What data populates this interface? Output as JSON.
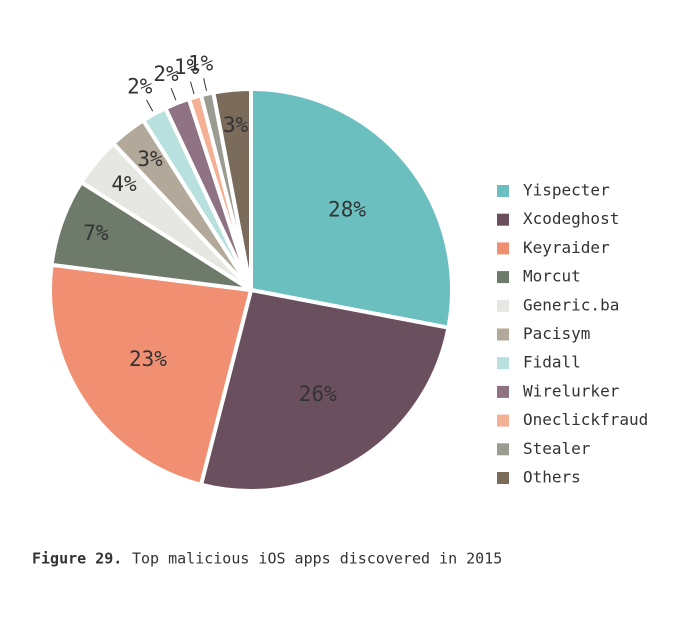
{
  "chart_data": {
    "type": "pie",
    "categories": [
      "Yispecter",
      "Xcodeghost",
      "Keyraider",
      "Morcut",
      "Generic.ba",
      "Pacisym",
      "Fidall",
      "Wirelurker",
      "Oneclickfraud",
      "Stealer",
      "Others"
    ],
    "values": [
      28,
      26,
      23,
      7,
      4,
      3,
      2,
      2,
      1,
      1,
      3
    ],
    "value_labels": [
      "28%",
      "26%",
      "23%",
      "7%",
      "4%",
      "3%",
      "2%",
      "2%",
      "1%",
      "1%",
      "3%"
    ],
    "colors": [
      "#6bbfbf",
      "#6a4f5e",
      "#f08f72",
      "#6e7a6a",
      "#e6e6e3",
      "#b2a99a",
      "#b7e0de",
      "#8f7384",
      "#f4b095",
      "#9a9c92",
      "#7a6b5a"
    ],
    "caption_label": "Figure 29.",
    "caption": "Top malicious iOS apps discovered in 2015"
  }
}
